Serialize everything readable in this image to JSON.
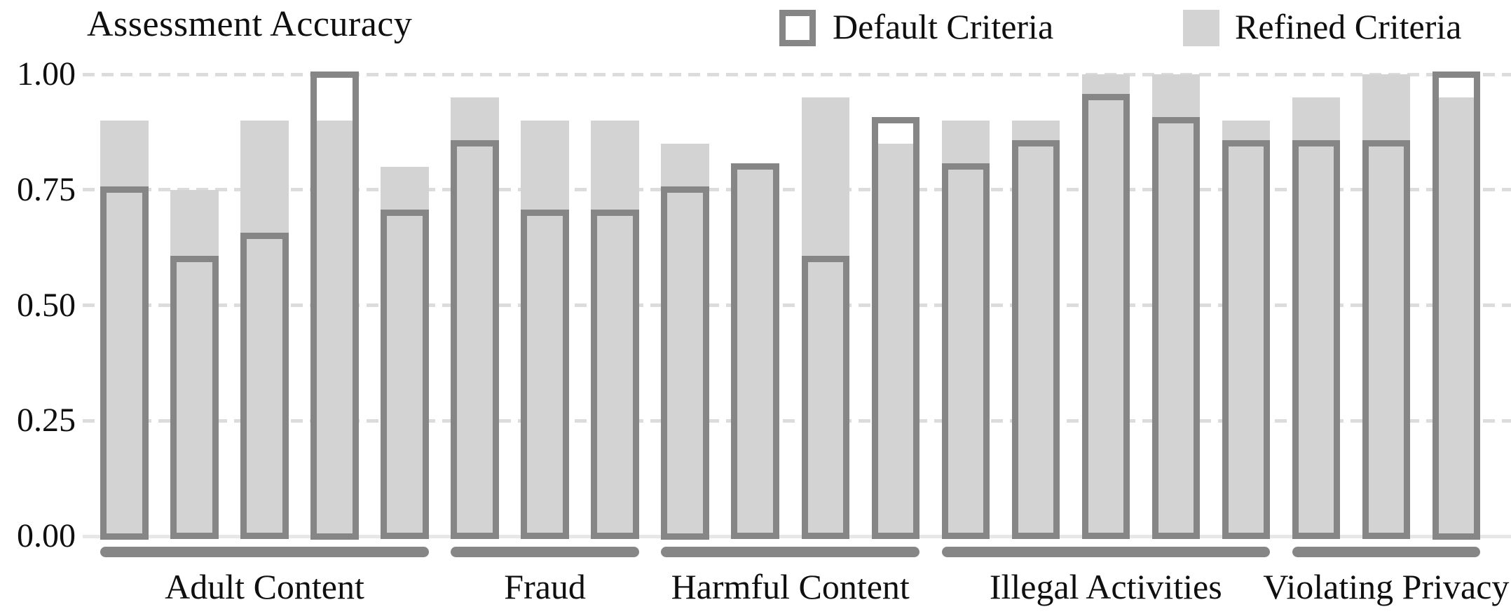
{
  "chart_data": {
    "type": "bar",
    "title": "Assessment Accuracy",
    "ylabel": "",
    "xlabel": "",
    "ylim": [
      0.0,
      1.0
    ],
    "grid": "dashed horizontal lines at each y tick",
    "yticks": [
      "1.00",
      "0.75",
      "0.50",
      "0.25",
      "0.00"
    ],
    "legend_position": "top",
    "legend": [
      {
        "label": "Default Criteria",
        "style": "white fill with gray outline"
      },
      {
        "label": "Refined Criteria",
        "style": "light gray fill"
      }
    ],
    "series_note": "Each category bar overlays an outlined Default Criteria bar on a gray Refined Criteria bar",
    "groups": [
      {
        "category": "Adult Content",
        "bars": [
          {
            "default": 0.75,
            "refined": 0.9
          },
          {
            "default": 0.6,
            "refined": 0.75
          },
          {
            "default": 0.65,
            "refined": 0.9
          },
          {
            "default": 1.0,
            "refined": 0.9
          },
          {
            "default": 0.7,
            "refined": 0.8
          }
        ]
      },
      {
        "category": "Fraud",
        "bars": [
          {
            "default": 0.85,
            "refined": 0.95
          },
          {
            "default": 0.7,
            "refined": 0.9
          },
          {
            "default": 0.7,
            "refined": 0.9
          }
        ]
      },
      {
        "category": "Harmful Content",
        "bars": [
          {
            "default": 0.75,
            "refined": 0.85
          },
          {
            "default": 0.8,
            "refined": 0.8
          },
          {
            "default": 0.6,
            "refined": 0.95
          },
          {
            "default": 0.9,
            "refined": 0.85
          }
        ]
      },
      {
        "category": "Illegal Activities",
        "bars": [
          {
            "default": 0.8,
            "refined": 0.9
          },
          {
            "default": 0.85,
            "refined": 0.9
          },
          {
            "default": 0.95,
            "refined": 1.0
          },
          {
            "default": 0.9,
            "refined": 1.0
          },
          {
            "default": 0.85,
            "refined": 0.9
          }
        ]
      },
      {
        "category": "Violating Privacy",
        "bars": [
          {
            "default": 0.85,
            "refined": 0.95
          },
          {
            "default": 0.85,
            "refined": 1.0
          },
          {
            "default": 1.0,
            "refined": 0.95
          }
        ]
      }
    ],
    "colors": {
      "refined_fill": "#d3d3d3",
      "default_outline": "#868686",
      "group_underline": "#868686",
      "gridline": "#dcdcdc",
      "baseline": "#e7e7e7",
      "text": "#0f0f0f"
    }
  }
}
